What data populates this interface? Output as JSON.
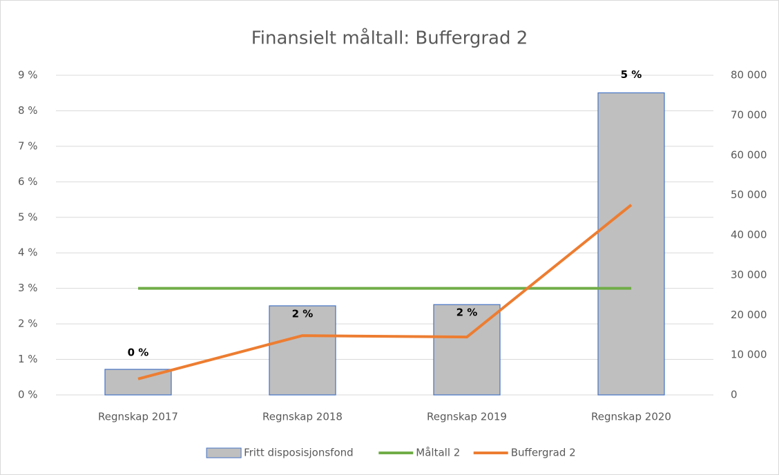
{
  "chart_data": {
    "type": "combo",
    "title": "Finansielt måltall: Buffergrad 2",
    "categories": [
      "Regnskap 2017",
      "Regnskap 2018",
      "Regnskap 2019",
      "Regnskap 2020"
    ],
    "series": [
      {
        "name": "Fritt disposisjonsfond",
        "type": "bar",
        "axis": "y2",
        "color": "#bfbfbf",
        "edge_color": "#4472c4",
        "values": [
          6400,
          22300,
          22600,
          75600
        ]
      },
      {
        "name": "Måltall 2",
        "type": "line",
        "color": "#70ad47",
        "values": [
          3,
          3,
          3,
          3
        ]
      },
      {
        "name": "Buffergrad 2",
        "type": "line",
        "color": "#ed7d31",
        "values": [
          0.45,
          1.67,
          1.63,
          5.35
        ],
        "value_labels": [
          "0 %",
          "2 %",
          "2 %",
          "5 %"
        ]
      }
    ],
    "ylim": [
      0,
      9
    ],
    "yticks": [
      {
        "value": 0,
        "label": "0 %"
      },
      {
        "value": 1,
        "label": "1 %"
      },
      {
        "value": 2,
        "label": "2 %"
      },
      {
        "value": 3,
        "label": "3 %"
      },
      {
        "value": 4,
        "label": "4 %"
      },
      {
        "value": 5,
        "label": "5 %"
      },
      {
        "value": 6,
        "label": "6 %"
      },
      {
        "value": 7,
        "label": "7 %"
      },
      {
        "value": 8,
        "label": "8 %"
      },
      {
        "value": 9,
        "label": "9 %"
      }
    ],
    "y2lim": [
      0,
      80000
    ],
    "y2ticks": [
      0,
      {
        "value": 10000,
        "label": "10 000"
      },
      {
        "value": 20000,
        "label": "20 000"
      },
      {
        "value": 30000,
        "label": "30 000"
      },
      {
        "value": 40000,
        "label": "40 000"
      },
      {
        "value": 50000,
        "label": "50 000"
      },
      {
        "value": 60000,
        "label": "60 000"
      },
      {
        "value": 70000,
        "label": "70 000"
      },
      {
        "value": 80000,
        "label": "80 000"
      }
    ],
    "grid": true,
    "legend": "bottom"
  }
}
